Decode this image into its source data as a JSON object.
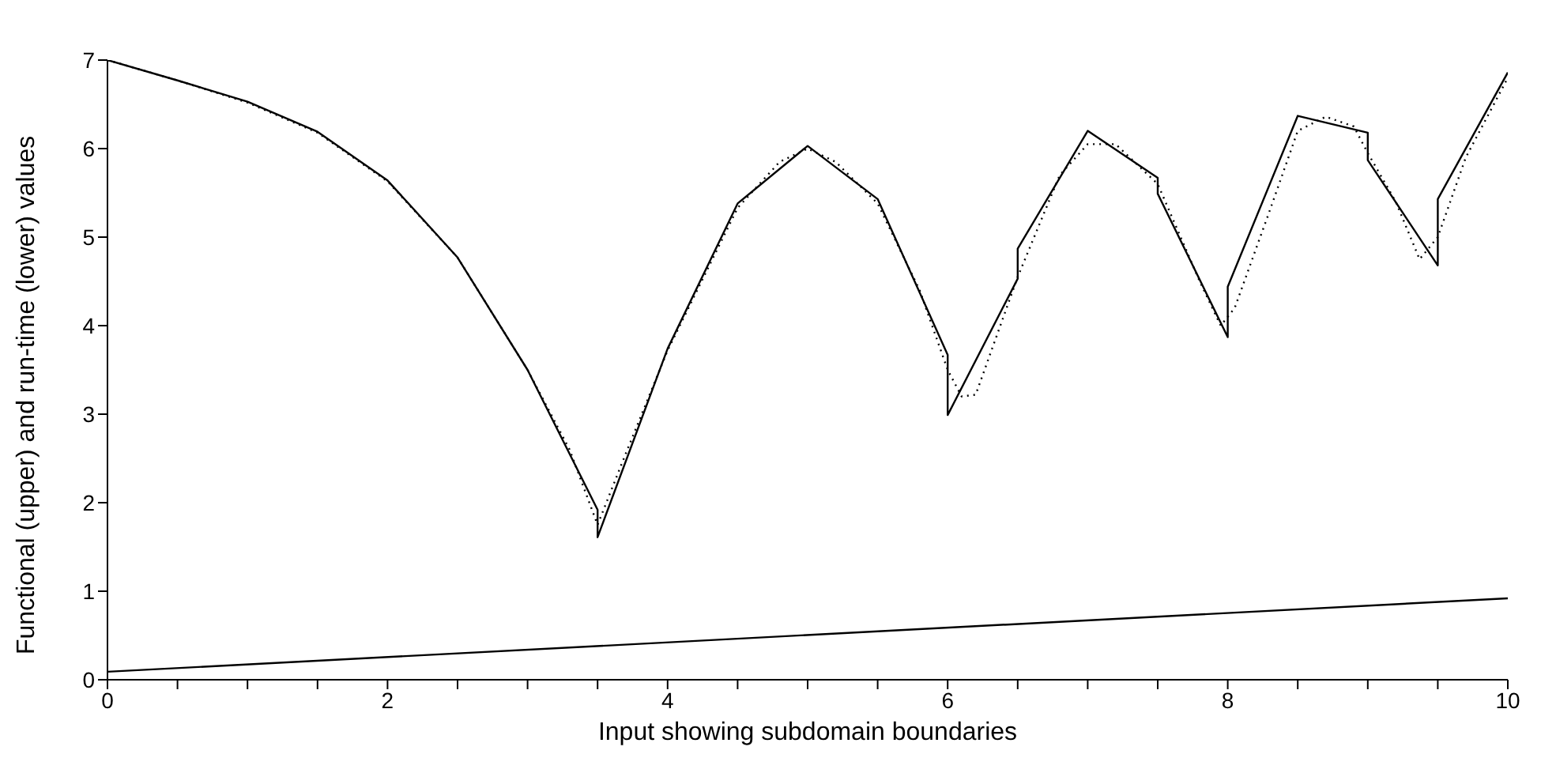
{
  "chart_data": {
    "type": "line",
    "xlabel": "Input showing subdomain boundaries",
    "ylabel": "Functional (upper) and run-time (lower) values",
    "xlim": [
      0,
      10
    ],
    "ylim": [
      0,
      7
    ],
    "xticks": [
      0,
      {
        "value": 0.5,
        "label": null
      },
      {
        "value": 1,
        "label": null
      },
      {
        "value": 1.5,
        "label": null
      },
      2,
      {
        "value": 2.5,
        "label": null
      },
      {
        "value": 3,
        "label": null
      },
      {
        "value": 3.5,
        "label": null
      },
      4,
      {
        "value": 4.5,
        "label": null
      },
      {
        "value": 5,
        "label": null
      },
      {
        "value": 5.5,
        "label": null
      },
      6,
      {
        "value": 6.5,
        "label": null
      },
      {
        "value": 7,
        "label": null
      },
      {
        "value": 7.5,
        "label": null
      },
      8,
      {
        "value": 8.5,
        "label": null
      },
      {
        "value": 9,
        "label": null
      },
      {
        "value": 9.5,
        "label": null
      },
      10
    ],
    "yticks": [
      0,
      1,
      2,
      3,
      4,
      5,
      6,
      7
    ],
    "marker": "none",
    "series": [
      {
        "color": "#000000",
        "line_style": "solid",
        "x": [
          0,
          0.5,
          1,
          1.5,
          2,
          2.5,
          3,
          3.5,
          3.5,
          4,
          4.5,
          5,
          5.5,
          6,
          6,
          6.5,
          6.5,
          7,
          7.5,
          7.5,
          8,
          8,
          8.5,
          9,
          9,
          9.5,
          9.5,
          10
        ],
        "values": [
          7.0,
          6.77,
          6.53,
          6.19,
          5.64,
          4.77,
          3.5,
          1.92,
          1.61,
          3.74,
          5.38,
          6.03,
          5.43,
          3.67,
          2.99,
          4.53,
          4.87,
          6.2,
          5.67,
          5.49,
          3.87,
          4.44,
          6.37,
          6.18,
          5.87,
          4.68,
          5.43,
          6.86
        ]
      },
      {
        "color": "#000000",
        "line_style": "dotted",
        "x": [
          0,
          0.5,
          1,
          1.5,
          2,
          2.5,
          3,
          3.3,
          3.5,
          3.7,
          4,
          4.5,
          4.8,
          5,
          5.2,
          5.5,
          5.8,
          6,
          6.1,
          6.2,
          6.5,
          6.8,
          7,
          7.2,
          7.5,
          7.8,
          7.95,
          8.05,
          8.3,
          8.5,
          8.7,
          8.9,
          9,
          9.2,
          9.37,
          9.5,
          9.7,
          10
        ],
        "values": [
          7.0,
          6.77,
          6.52,
          6.18,
          5.63,
          4.77,
          3.5,
          2.6,
          1.75,
          2.55,
          3.72,
          5.33,
          5.85,
          6.0,
          5.85,
          5.38,
          4.4,
          3.5,
          3.2,
          3.22,
          4.55,
          5.7,
          6.05,
          6.05,
          5.6,
          4.5,
          4.0,
          4.2,
          5.3,
          6.2,
          6.36,
          6.25,
          5.95,
          5.4,
          4.75,
          5.0,
          5.9,
          6.8
        ]
      },
      {
        "color": "#000000",
        "line_style": "solid",
        "x": [
          0,
          10
        ],
        "values": [
          0.09,
          0.92
        ]
      }
    ]
  }
}
